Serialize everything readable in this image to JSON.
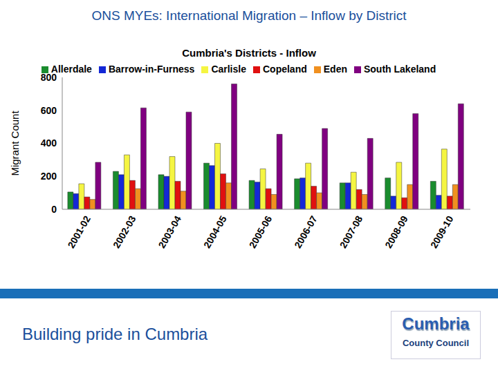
{
  "page": {
    "heading": "ONS MYEs: International Migration – Inflow by District",
    "footer": "Building pride in Cumbria",
    "logo": [
      "Cumbria",
      "County Council"
    ]
  },
  "chart_data": {
    "type": "bar",
    "title": "Cumbria's Districts - Inflow",
    "y_label": "Migrant Count",
    "categories": [
      "2001-02",
      "2002-03",
      "2003-04",
      "2004-05",
      "2005-06",
      "2006-07",
      "2007-08",
      "2008-09",
      "2009-10"
    ],
    "series": [
      {
        "name": "Allerdale",
        "color": "#1a8c2e",
        "values": [
          105,
          230,
          210,
          280,
          175,
          185,
          160,
          190,
          170
        ]
      },
      {
        "name": "Barrow-in-Furness",
        "color": "#1428d6",
        "values": [
          95,
          210,
          200,
          265,
          165,
          190,
          160,
          80,
          85
        ]
      },
      {
        "name": "Carlisle",
        "color": "#f5f542",
        "values": [
          155,
          330,
          320,
          400,
          245,
          280,
          225,
          285,
          365
        ]
      },
      {
        "name": "Copeland",
        "color": "#e01010",
        "values": [
          75,
          175,
          170,
          215,
          125,
          140,
          120,
          70,
          80
        ]
      },
      {
        "name": "Eden",
        "color": "#f09020",
        "values": [
          60,
          125,
          110,
          160,
          90,
          100,
          90,
          150,
          150
        ]
      },
      {
        "name": "South Lakeland",
        "color": "#800080",
        "values": [
          285,
          615,
          590,
          760,
          455,
          490,
          430,
          580,
          640
        ]
      }
    ],
    "ylim": [
      0,
      800
    ],
    "yticks": [
      0,
      200,
      400,
      600,
      800
    ],
    "grid": false,
    "legend": "top"
  }
}
